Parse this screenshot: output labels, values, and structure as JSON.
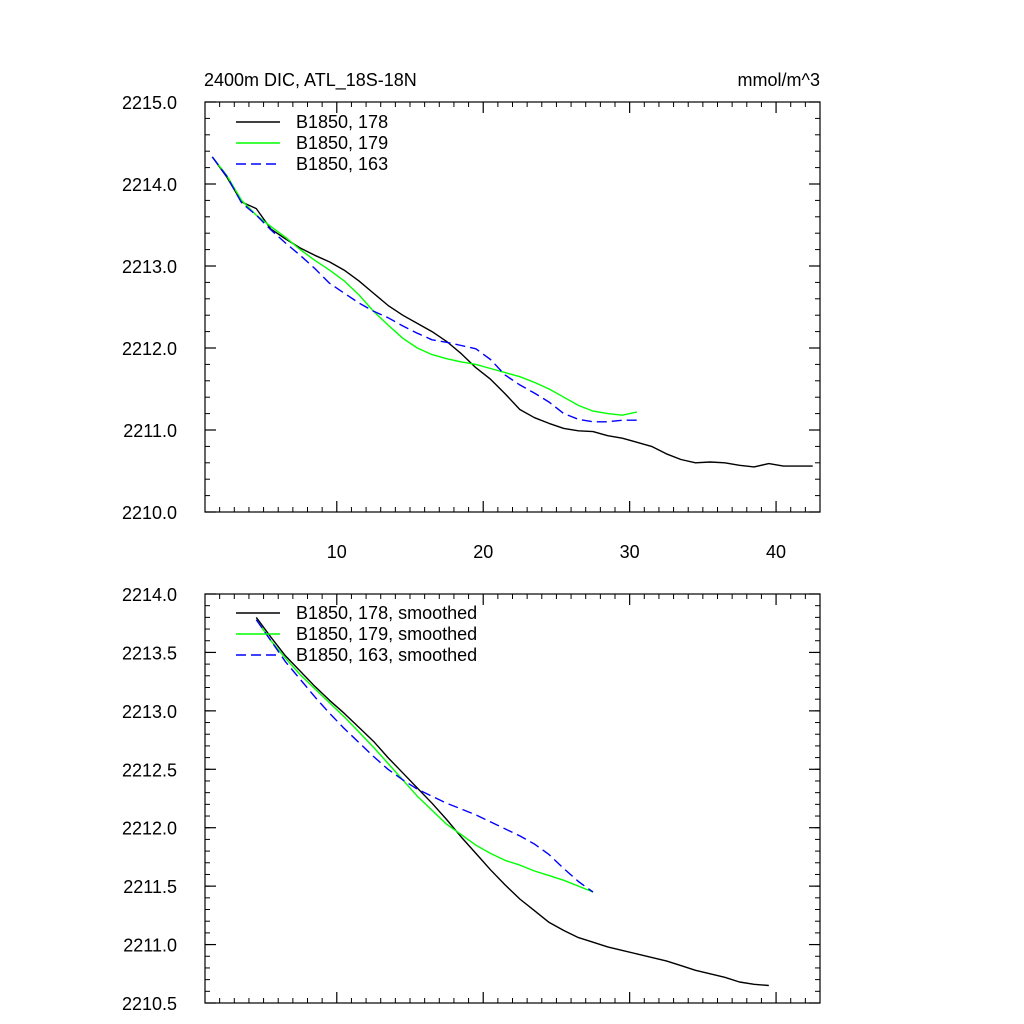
{
  "chart_data": [
    {
      "type": "line",
      "title": "2400m DIC, ATL_18S-18N",
      "units": "mmol/m^3",
      "xlabel": "",
      "ylabel": "",
      "xlim": [
        1,
        43
      ],
      "ylim": [
        2210.0,
        2215.0
      ],
      "xticks": [
        10,
        20,
        30,
        40
      ],
      "xtick_labels": [
        "10",
        "20",
        "30",
        "40"
      ],
      "yticks": [
        2210.0,
        2211.0,
        2212.0,
        2213.0,
        2214.0,
        2215.0
      ],
      "ytick_labels": [
        "2210.0",
        "2211.0",
        "2212.0",
        "2213.0",
        "2214.0",
        "2215.0"
      ],
      "legend_position": "top-left",
      "series": [
        {
          "name": "B1850, 178",
          "color": "#000000",
          "dash": "solid",
          "x": [
            1.5,
            2.5,
            3.5,
            4.5,
            5.5,
            6.5,
            7.5,
            8.5,
            9.5,
            10.5,
            11.5,
            12.5,
            13.5,
            14.5,
            15.5,
            16.5,
            17.5,
            18.5,
            19.5,
            20.5,
            21.5,
            22.5,
            23.5,
            24.5,
            25.5,
            26.5,
            27.5,
            28.5,
            29.5,
            30.5,
            31.5,
            32.5,
            33.5,
            34.5,
            35.5,
            36.5,
            37.5,
            38.5,
            39.5,
            40.5,
            41.5,
            42.5
          ],
          "y": [
            2214.33,
            2214.08,
            2213.78,
            2213.7,
            2213.45,
            2213.33,
            2213.22,
            2213.13,
            2213.05,
            2212.95,
            2212.82,
            2212.67,
            2212.52,
            2212.4,
            2212.3,
            2212.2,
            2212.08,
            2211.93,
            2211.76,
            2211.62,
            2211.44,
            2211.25,
            2211.15,
            2211.08,
            2211.02,
            2210.99,
            2210.98,
            2210.93,
            2210.9,
            2210.85,
            2210.8,
            2210.71,
            2210.64,
            2210.6,
            2210.61,
            2210.6,
            2210.57,
            2210.55,
            2210.59,
            2210.56,
            2210.56,
            2210.56
          ]
        },
        {
          "name": "B1850, 179",
          "color": "#00ff00",
          "dash": "solid",
          "x": [
            1.5,
            2.5,
            3.5,
            4.5,
            5.5,
            6.5,
            7.5,
            8.5,
            9.5,
            10.5,
            11.5,
            12.5,
            13.5,
            14.5,
            15.5,
            16.5,
            17.5,
            18.5,
            19.5,
            20.5,
            21.5,
            22.5,
            23.5,
            24.5,
            25.5,
            26.5,
            27.5,
            28.5,
            29.5,
            30.5
          ],
          "y": [
            2214.33,
            2214.1,
            2213.8,
            2213.62,
            2213.48,
            2213.35,
            2213.2,
            2213.07,
            2212.95,
            2212.82,
            2212.65,
            2212.45,
            2212.28,
            2212.12,
            2212.0,
            2211.92,
            2211.87,
            2211.83,
            2211.8,
            2211.75,
            2211.7,
            2211.65,
            2211.58,
            2211.5,
            2211.4,
            2211.3,
            2211.23,
            2211.2,
            2211.18,
            2211.22
          ]
        },
        {
          "name": "B1850, 163",
          "color": "#0000ff",
          "dash": "dashed",
          "x": [
            1.5,
            2.5,
            3.5,
            4.5,
            5.5,
            6.5,
            7.5,
            8.5,
            9.5,
            10.5,
            11.5,
            12.5,
            13.5,
            14.5,
            15.5,
            16.5,
            17.5,
            18.5,
            19.5,
            20.5,
            21.5,
            22.5,
            23.5,
            24.5,
            25.5,
            26.5,
            27.5,
            28.5,
            29.5,
            30.5
          ],
          "y": [
            2214.33,
            2214.09,
            2213.77,
            2213.62,
            2213.44,
            2213.28,
            2213.13,
            2212.97,
            2212.79,
            2212.67,
            2212.55,
            2212.45,
            2212.37,
            2212.27,
            2212.18,
            2212.1,
            2212.07,
            2212.03,
            2211.99,
            2211.86,
            2211.67,
            2211.55,
            2211.45,
            2211.34,
            2211.2,
            2211.13,
            2211.1,
            2211.1,
            2211.12,
            2211.12
          ]
        }
      ]
    },
    {
      "type": "line",
      "title": "",
      "xlabel": "",
      "ylabel": "",
      "xlim": [
        1,
        43
      ],
      "ylim": [
        2210.5,
        2214.0
      ],
      "xticks": [
        10,
        20,
        30,
        40
      ],
      "xtick_labels": [],
      "yticks": [
        2210.5,
        2211.0,
        2211.5,
        2212.0,
        2212.5,
        2213.0,
        2213.5,
        2214.0
      ],
      "ytick_labels": [
        "2210.5",
        "2211.0",
        "2211.5",
        "2212.0",
        "2212.5",
        "2213.0",
        "2213.5",
        "2214.0"
      ],
      "legend_position": "top-left",
      "series": [
        {
          "name": "B1850, 178, smoothed",
          "color": "#000000",
          "dash": "solid",
          "x": [
            4.5,
            5.5,
            6.5,
            7.5,
            8.5,
            9.5,
            10.5,
            11.5,
            12.5,
            13.5,
            14.5,
            15.5,
            16.5,
            17.5,
            18.5,
            19.5,
            20.5,
            21.5,
            22.5,
            23.5,
            24.5,
            25.5,
            26.5,
            27.5,
            28.5,
            29.5,
            30.5,
            31.5,
            32.5,
            33.5,
            34.5,
            35.5,
            36.5,
            37.5,
            38.5,
            39.5
          ],
          "y": [
            2213.8,
            2213.63,
            2213.47,
            2213.34,
            2213.21,
            2213.09,
            2212.98,
            2212.86,
            2212.74,
            2212.6,
            2212.47,
            2212.34,
            2212.21,
            2212.07,
            2211.92,
            2211.78,
            2211.64,
            2211.51,
            2211.39,
            2211.29,
            2211.19,
            2211.12,
            2211.06,
            2211.02,
            2210.98,
            2210.95,
            2210.92,
            2210.89,
            2210.86,
            2210.82,
            2210.78,
            2210.75,
            2210.72,
            2210.68,
            2210.66,
            2210.65
          ]
        },
        {
          "name": "B1850, 179, smoothed",
          "color": "#00ff00",
          "dash": "solid",
          "x": [
            4.5,
            5.5,
            6.5,
            7.5,
            8.5,
            9.5,
            10.5,
            11.5,
            12.5,
            13.5,
            14.5,
            15.5,
            16.5,
            17.5,
            18.5,
            19.5,
            20.5,
            21.5,
            22.5,
            23.5,
            24.5,
            25.5,
            26.5,
            27.5
          ],
          "y": [
            2213.78,
            2213.6,
            2213.45,
            2213.31,
            2213.19,
            2213.07,
            2212.95,
            2212.82,
            2212.69,
            2212.55,
            2212.41,
            2212.27,
            2212.15,
            2212.03,
            2211.94,
            2211.85,
            2211.78,
            2211.72,
            2211.68,
            2211.63,
            2211.59,
            2211.55,
            2211.5,
            2211.45
          ]
        },
        {
          "name": "B1850, 163, smoothed",
          "color": "#0000ff",
          "dash": "dashed",
          "x": [
            4.5,
            5.5,
            6.5,
            7.5,
            8.5,
            9.5,
            10.5,
            11.5,
            12.5,
            13.5,
            14.5,
            15.5,
            16.5,
            17.5,
            18.5,
            19.5,
            20.5,
            21.5,
            22.5,
            23.5,
            24.5,
            25.5,
            26.5,
            27.5
          ],
          "y": [
            2213.78,
            2213.6,
            2213.42,
            2213.27,
            2213.12,
            2212.98,
            2212.85,
            2212.73,
            2212.61,
            2212.5,
            2212.41,
            2212.33,
            2212.27,
            2212.21,
            2212.16,
            2212.11,
            2212.05,
            2211.99,
            2211.93,
            2211.86,
            2211.77,
            2211.65,
            2211.54,
            2211.45
          ]
        }
      ]
    }
  ]
}
